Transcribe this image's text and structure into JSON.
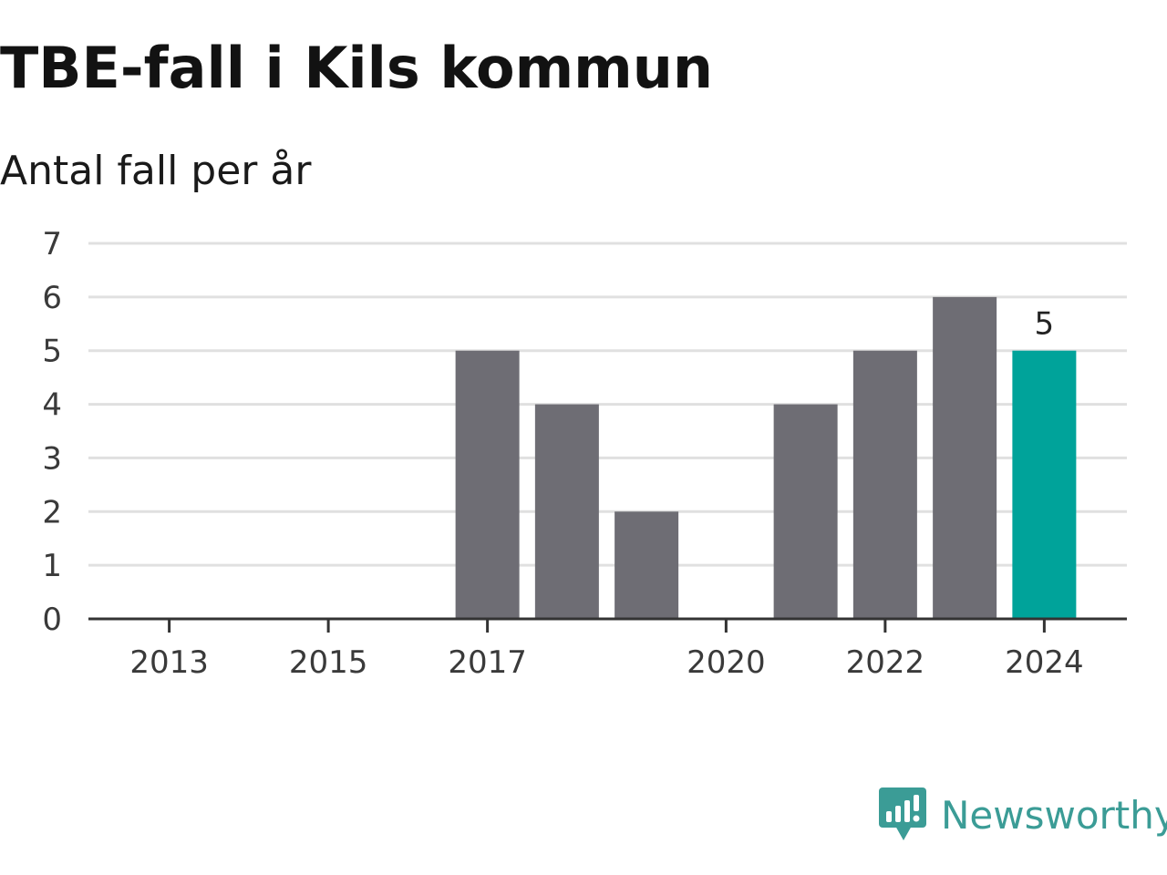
{
  "title": "TBE-fall i Kils kommun",
  "subtitle": "Antal fall per år",
  "brand": {
    "name": "Newsworthy",
    "icon": "newsworthy-chart-bubble-icon",
    "color": "#3b9c96"
  },
  "colors": {
    "bar": "#6e6d74",
    "highlight": "#00a39a",
    "grid": "#e0e0e0",
    "axis": "#333333"
  },
  "chart_data": {
    "type": "bar",
    "title": "TBE-fall i Kils kommun",
    "subtitle": "Antal fall per år",
    "xlabel": "",
    "ylabel": "",
    "categories": [
      "2013",
      "2014",
      "2015",
      "2016",
      "2017",
      "2018",
      "2019",
      "2020",
      "2021",
      "2022",
      "2023",
      "2024"
    ],
    "values": [
      0,
      0,
      0,
      0,
      5,
      4,
      2,
      0,
      4,
      5,
      6,
      5
    ],
    "x_tick_labels": [
      "2013",
      "2015",
      "2017",
      "2020",
      "2022",
      "2024"
    ],
    "y_ticks": [
      0,
      1,
      2,
      3,
      4,
      5,
      6,
      7
    ],
    "ylim": [
      0,
      7
    ],
    "grid": true,
    "highlight_category": "2024",
    "data_labels": [
      {
        "category": "2024",
        "text": "5"
      }
    ]
  }
}
